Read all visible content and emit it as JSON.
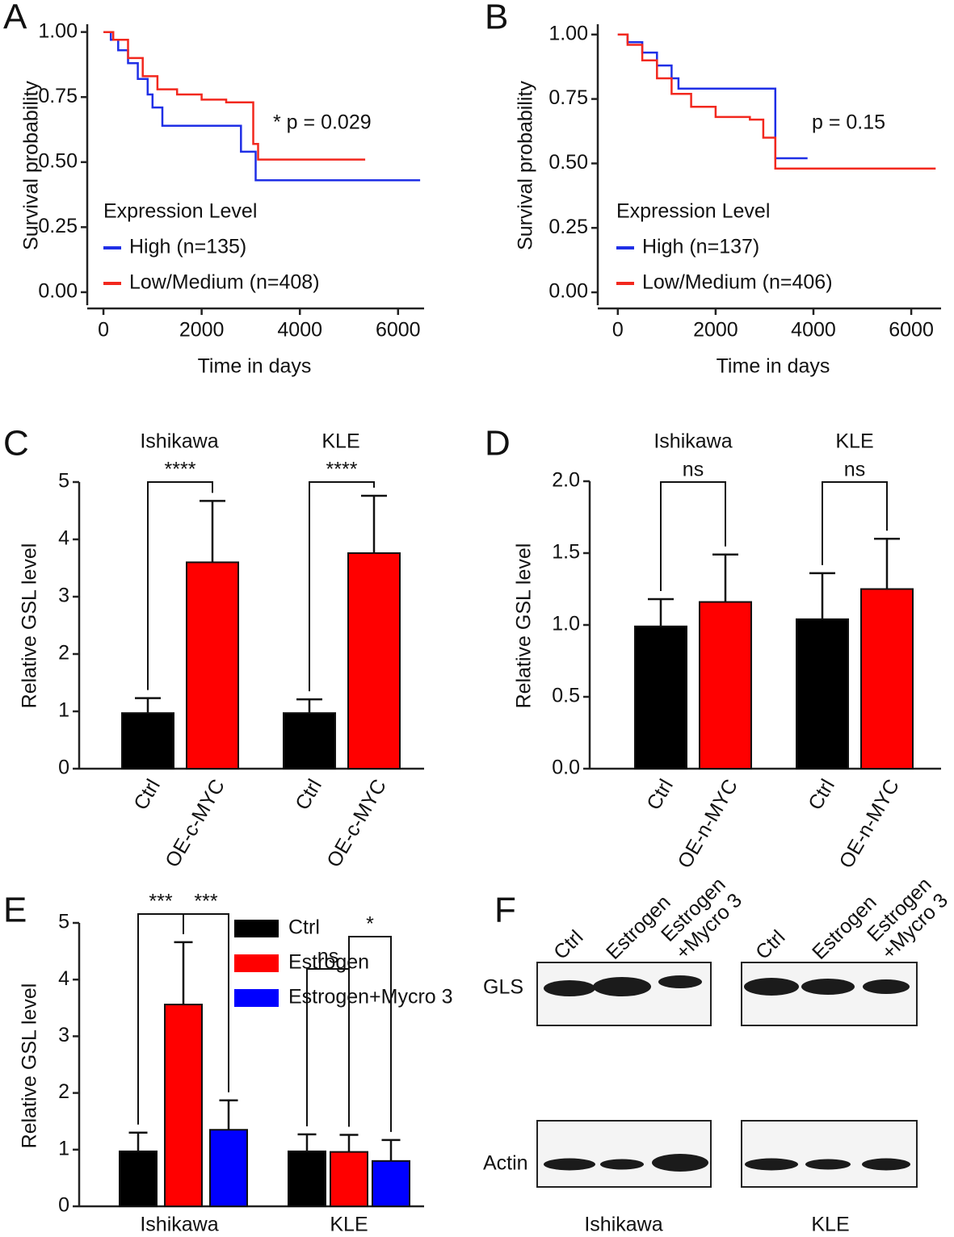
{
  "panel_labels": [
    "A",
    "B",
    "C",
    "D",
    "E",
    "F"
  ],
  "chart_data": [
    {
      "type": "line",
      "xlabel": "Time in days",
      "ylabel": "Survival probability",
      "xlim": [
        -330,
        6530
      ],
      "ylim": [
        -0.05,
        1.03
      ],
      "xticks": [
        0,
        2000,
        4000,
        6000
      ],
      "yticks": [
        {
          "value": 0,
          "label": "0.00"
        },
        {
          "value": 0.25,
          "label": "0.25"
        },
        {
          "value": 0.5,
          "label": "0.50"
        },
        {
          "value": 0.75,
          "label": "0.75"
        },
        {
          "value": 1,
          "label": "1.00"
        }
      ],
      "legend_title": "Expression Level",
      "annotation": "* p = 0.029",
      "series": [
        {
          "name": "High (n=135)",
          "color": "#1f2fe6",
          "x": [
            0,
            150,
            150,
            300,
            300,
            500,
            500,
            700,
            700,
            900,
            900,
            1000,
            1000,
            1200,
            1200,
            2800,
            2800,
            3100,
            3100,
            6450
          ],
          "values": [
            1,
            1,
            0.97,
            0.97,
            0.93,
            0.93,
            0.88,
            0.88,
            0.82,
            0.82,
            0.76,
            0.76,
            0.71,
            0.71,
            0.64,
            0.64,
            0.54,
            0.54,
            0.43,
            0.43
          ]
        },
        {
          "name": "Low/Medium (n=408)",
          "color": "#f2281e",
          "x": [
            0,
            200,
            200,
            500,
            500,
            800,
            800,
            1100,
            1100,
            1500,
            1500,
            2000,
            2000,
            2500,
            2500,
            3050,
            3050,
            3150,
            3150,
            5330
          ],
          "values": [
            1,
            1,
            0.97,
            0.97,
            0.9,
            0.9,
            0.83,
            0.83,
            0.78,
            0.78,
            0.76,
            0.76,
            0.74,
            0.74,
            0.73,
            0.73,
            0.57,
            0.57,
            0.51,
            0.51
          ]
        }
      ]
    },
    {
      "type": "line",
      "xlabel": "Time in days",
      "ylabel": "Survival probability",
      "xlim": [
        -410,
        6610
      ],
      "ylim": [
        -0.05,
        1.04
      ],
      "xticks": [
        0,
        2000,
        4000,
        6000
      ],
      "yticks": [
        {
          "value": 0,
          "label": "0.00"
        },
        {
          "value": 0.25,
          "label": "0.25"
        },
        {
          "value": 0.5,
          "label": "0.50"
        },
        {
          "value": 0.75,
          "label": "0.75"
        },
        {
          "value": 1,
          "label": "1.00"
        }
      ],
      "legend_title": "Expression Level",
      "annotation": "p = 0.15",
      "series": [
        {
          "name": "High (n=137)",
          "color": "#1f2fe6",
          "x": [
            0,
            200,
            200,
            500,
            500,
            800,
            800,
            1100,
            1100,
            1240,
            1240,
            3220,
            3220,
            3880
          ],
          "values": [
            1,
            1,
            0.97,
            0.97,
            0.93,
            0.93,
            0.88,
            0.88,
            0.83,
            0.83,
            0.79,
            0.79,
            0.52,
            0.52
          ]
        },
        {
          "name": "Low/Medium (n=406)",
          "color": "#f2281e",
          "x": [
            0,
            200,
            200,
            500,
            500,
            800,
            800,
            1100,
            1100,
            1500,
            1500,
            2000,
            2000,
            2700,
            2700,
            2975,
            2975,
            3220,
            3220,
            6500
          ],
          "values": [
            1,
            1,
            0.96,
            0.96,
            0.9,
            0.9,
            0.83,
            0.83,
            0.77,
            0.77,
            0.72,
            0.72,
            0.68,
            0.68,
            0.67,
            0.67,
            0.6,
            0.6,
            0.48,
            0.48
          ]
        }
      ]
    },
    {
      "type": "bar",
      "ylabel": "Relative GSL level",
      "ylim": [
        0,
        5
      ],
      "yticks": [
        0,
        1,
        2,
        3,
        4,
        5
      ],
      "groups": [
        "Ishikawa",
        "KLE"
      ],
      "categories": [
        "Ctrl",
        "OE-c-MYC",
        "Ctrl",
        "OE-c-MYC"
      ],
      "values": [
        0.97,
        3.6,
        0.97,
        3.76
      ],
      "errors": [
        0.26,
        1.07,
        0.24,
        1.0
      ],
      "colors": [
        "#000000",
        "#ff0000",
        "#000000",
        "#ff0000"
      ],
      "significance": [
        "****",
        "****"
      ]
    },
    {
      "type": "bar",
      "ylabel": "Relative GSL level",
      "ylim": [
        0,
        2
      ],
      "yticks": [
        {
          "value": 0,
          "label": "0.0"
        },
        {
          "value": 0.5,
          "label": "0.5"
        },
        {
          "value": 1,
          "label": "1.0"
        },
        {
          "value": 1.5,
          "label": "1.5"
        },
        {
          "value": 2,
          "label": "2.0"
        }
      ],
      "groups": [
        "Ishikawa",
        "KLE"
      ],
      "categories": [
        "Ctrl",
        "OE-n-MYC",
        "Ctrl",
        "OE-n-MYC"
      ],
      "values": [
        0.99,
        1.16,
        1.04,
        1.25
      ],
      "errors": [
        0.19,
        0.33,
        0.32,
        0.35
      ],
      "colors": [
        "#000000",
        "#ff0000",
        "#000000",
        "#ff0000"
      ],
      "significance": [
        "ns",
        "ns"
      ]
    },
    {
      "type": "bar",
      "ylabel": "Relative GSL level",
      "ylim": [
        0,
        5
      ],
      "yticks": [
        0,
        1,
        2,
        3,
        4,
        5
      ],
      "categories": [
        "Ishikawa",
        "KLE"
      ],
      "series": [
        {
          "name": "Ctrl",
          "color": "#000000",
          "values": [
            0.97,
            0.97
          ],
          "errors": [
            0.33,
            0.3
          ]
        },
        {
          "name": "Estrogen",
          "color": "#ff0000",
          "values": [
            3.56,
            0.96
          ],
          "errors": [
            1.1,
            0.3
          ]
        },
        {
          "name": "Estrogen+Mycro 3",
          "color": "#0000ff",
          "values": [
            1.35,
            0.8
          ],
          "errors": [
            0.52,
            0.37
          ]
        }
      ],
      "significance": [
        "***",
        "***",
        "ns",
        "*"
      ]
    }
  ],
  "blot": {
    "lanes": [
      [
        "Ctrl"
      ],
      [
        "Estrogen"
      ],
      [
        "Estrogen",
        "+Mycro 3"
      ]
    ],
    "rows": [
      "GLS",
      "Actin"
    ],
    "cell_lines": [
      "Ishikawa",
      "KLE"
    ]
  }
}
